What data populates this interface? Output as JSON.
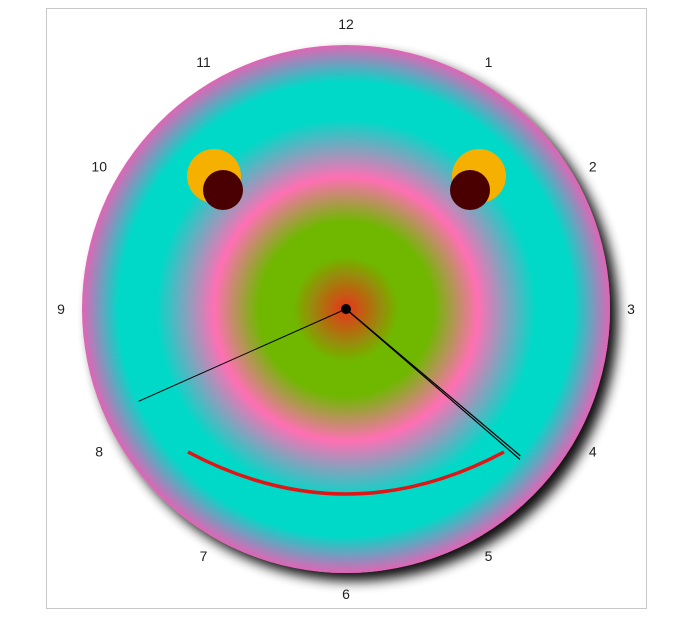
{
  "clock": {
    "hour_labels": [
      "12",
      "1",
      "2",
      "3",
      "4",
      "5",
      "6",
      "7",
      "8",
      "9",
      "10",
      "11"
    ],
    "time": {
      "hours": 4,
      "minutes": 21,
      "seconds": 41
    }
  },
  "colors": {
    "face_center": "#e8341a",
    "face_inner": "#6fb800",
    "face_mid": "#ff6fb4",
    "face_ring": "#00d9c8",
    "face_outer": "#e065b5",
    "eye_outer": "#f5b000",
    "pupil": "#4a0000",
    "mouth": "#e01515",
    "hands": "#000000",
    "center_dot": "#000000",
    "frame_border": "#c8c8c8"
  },
  "icons": {
    "face": "smiley-face-icon",
    "eyes": "eye-icon",
    "mouth": "smile-mouth-icon"
  }
}
